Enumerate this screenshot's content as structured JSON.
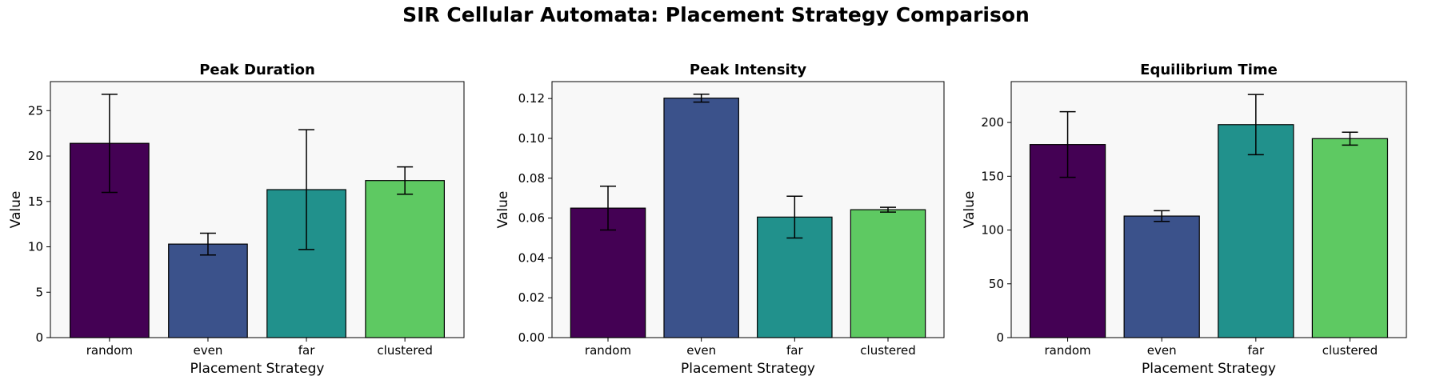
{
  "figure": {
    "title": "SIR Cellular Automata: Placement Strategy Comparison"
  },
  "colors": {
    "background": "#ffffff",
    "axes_face": "#f8f8f8",
    "bar_edge": "#000000",
    "random": "#440154",
    "even": "#3b528b",
    "far": "#21918c",
    "clustered": "#5ec962"
  },
  "chart_data": [
    {
      "type": "bar",
      "title": "Peak Duration",
      "xlabel": "Placement Strategy",
      "ylabel": "Value",
      "categories": [
        "random",
        "even",
        "far",
        "clustered"
      ],
      "values": [
        21.4,
        10.3,
        16.3,
        17.3
      ],
      "errors": [
        5.4,
        1.2,
        6.6,
        1.5
      ],
      "ylim": [
        0,
        28.2
      ],
      "yticks": [
        0,
        5,
        10,
        15,
        20,
        25
      ],
      "ytick_labels": [
        "0",
        "5",
        "10",
        "15",
        "20",
        "25"
      ],
      "grid": false
    },
    {
      "type": "bar",
      "title": "Peak Intensity",
      "xlabel": "Placement Strategy",
      "ylabel": "Value",
      "categories": [
        "random",
        "even",
        "far",
        "clustered"
      ],
      "values": [
        0.065,
        0.1202,
        0.0605,
        0.0642
      ],
      "errors": [
        0.011,
        0.002,
        0.0105,
        0.0012
      ],
      "ylim": [
        0,
        0.1285
      ],
      "yticks": [
        0,
        0.02,
        0.04,
        0.06,
        0.08,
        0.1,
        0.12
      ],
      "ytick_labels": [
        "0.00",
        "0.02",
        "0.04",
        "0.06",
        "0.08",
        "0.10",
        "0.12"
      ],
      "grid": false
    },
    {
      "type": "bar",
      "title": "Equilibrium Time",
      "xlabel": "Placement Strategy",
      "ylabel": "Value",
      "categories": [
        "random",
        "even",
        "far",
        "clustered"
      ],
      "values": [
        179.5,
        113.0,
        198.0,
        185.0
      ],
      "errors": [
        30.5,
        5.0,
        28.0,
        6.0
      ],
      "ylim": [
        0,
        238
      ],
      "yticks": [
        0,
        50,
        100,
        150,
        200
      ],
      "ytick_labels": [
        "0",
        "50",
        "100",
        "150",
        "200"
      ],
      "grid": false
    }
  ]
}
